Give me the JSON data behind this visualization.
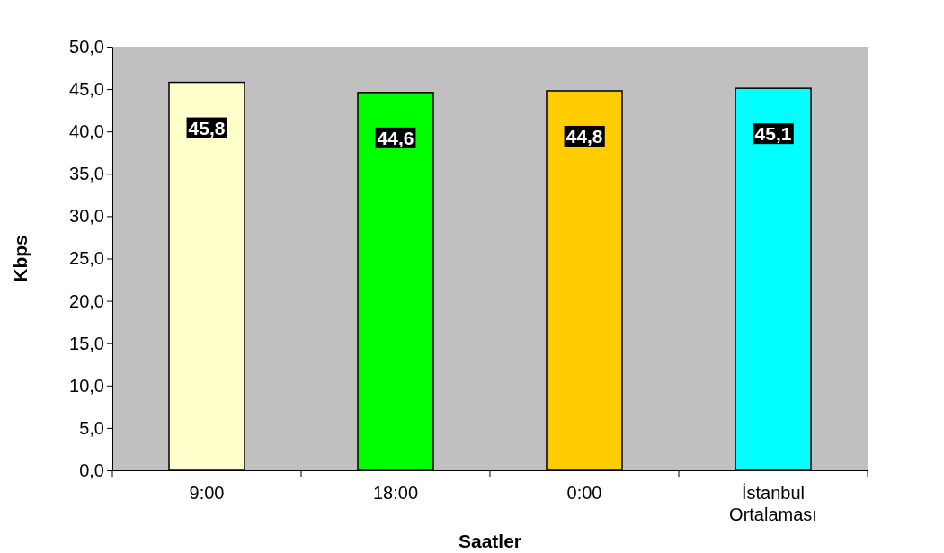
{
  "chart_data": {
    "type": "bar",
    "xlabel": "Saatler",
    "ylabel": "Kbps",
    "categories": [
      "9:00",
      "18:00",
      "0:00",
      "İstanbul Ortalaması"
    ],
    "values": [
      45.8,
      44.6,
      44.8,
      45.1
    ],
    "colors": [
      "#ffffcc",
      "#00ff00",
      "#ffcc00",
      "#00ffff"
    ],
    "value_labels": [
      "45,8",
      "44,6",
      "44,8",
      "45,1"
    ],
    "ylim": [
      0,
      50
    ],
    "yticks": [
      {
        "value": 0,
        "label": "0,0"
      },
      {
        "value": 5,
        "label": "5,0"
      },
      {
        "value": 10,
        "label": "10,0"
      },
      {
        "value": 15,
        "label": "15,0"
      },
      {
        "value": 20,
        "label": "20,0"
      },
      {
        "value": 25,
        "label": "25,0"
      },
      {
        "value": 30,
        "label": "30,0"
      },
      {
        "value": 35,
        "label": "35,0"
      },
      {
        "value": 40,
        "label": "40,0"
      },
      {
        "value": 45,
        "label": "45,0"
      },
      {
        "value": 50,
        "label": "50,0"
      }
    ],
    "grid": false
  }
}
